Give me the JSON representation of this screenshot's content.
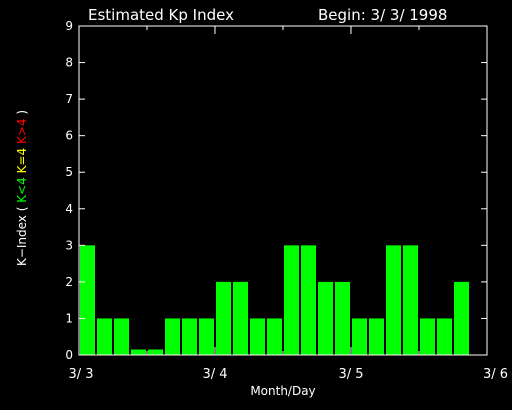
{
  "header": {
    "title": "Estimated Kp Index",
    "begin": "Begin: 3/ 3/ 1998"
  },
  "chart_data": {
    "type": "bar",
    "title": "Estimated Kp Index",
    "subtitle": "Begin: 3/ 3/ 1998",
    "xlabel": "Month/Day",
    "ylabel_parts": [
      {
        "text": "K−Index (",
        "color": "#ffffff"
      },
      {
        "text": "K<4",
        "color": "#00ff00"
      },
      {
        "text": "K=4",
        "color": "#ffff00"
      },
      {
        "text": "K>4",
        "color": "#ff0000"
      },
      {
        "text": ")",
        "color": "#ffffff"
      }
    ],
    "ylim": [
      0,
      9
    ],
    "yticks": [
      "0",
      "1",
      "2",
      "3",
      "4",
      "5",
      "6",
      "7",
      "8",
      "9"
    ],
    "xticks": [
      "3/ 3",
      "3/ 4",
      "3/ 5",
      "3/ 6"
    ],
    "grid": false,
    "bar_color": "#00ff00",
    "values": [
      3,
      1,
      1,
      0.15,
      0.15,
      1,
      1,
      1,
      2,
      2,
      1,
      1,
      3,
      3,
      2,
      2,
      1,
      1,
      3,
      3,
      1,
      1,
      2
    ]
  }
}
